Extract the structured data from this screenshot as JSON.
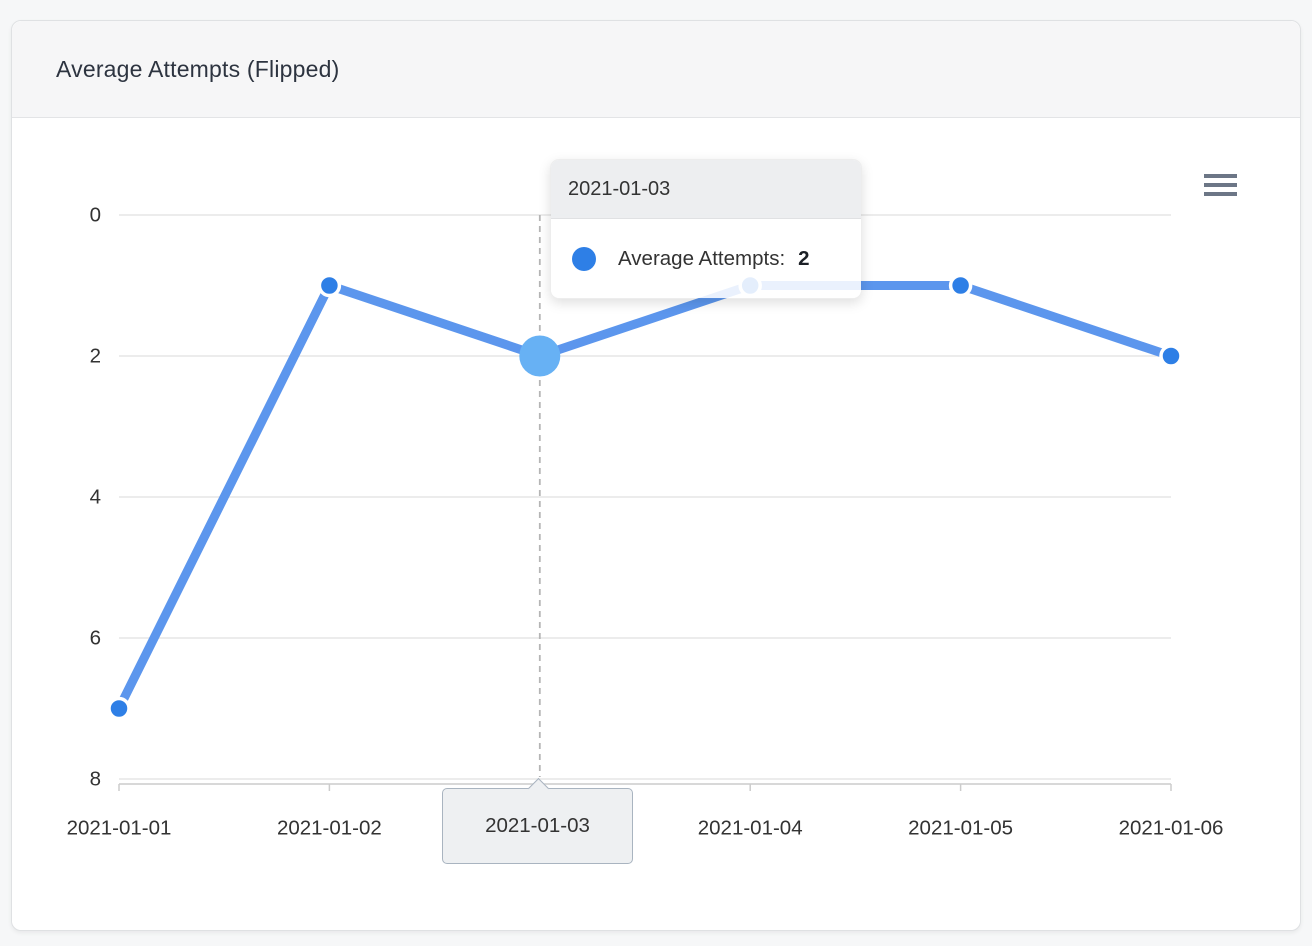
{
  "card": {
    "title": "Average Attempts (Flipped)"
  },
  "chart_data": {
    "type": "line",
    "title": "Average Attempts (Flipped)",
    "categories": [
      "2021-01-01",
      "2021-01-02",
      "2021-01-03",
      "2021-01-04",
      "2021-01-05",
      "2021-01-06"
    ],
    "series": [
      {
        "name": "Average Attempts",
        "values": [
          7,
          1,
          2,
          1,
          1,
          2
        ]
      }
    ],
    "xlabel": "",
    "ylabel": "",
    "y_ticks": [
      0,
      2,
      4,
      6,
      8
    ],
    "ylim": [
      0,
      8
    ],
    "y_axis_reversed": true,
    "grid": true,
    "legend_position": "none",
    "highlighted_index": 2,
    "colors": {
      "line": "#5c96ed",
      "marker": "#2e7fe6",
      "hover_marker": "#67b1f4",
      "gridline": "#e6e6e6",
      "axis_line": "#cccccc",
      "crosshair": "#b5b5b5",
      "axis_label": "#333333"
    }
  },
  "tooltip": {
    "header": "2021-01-03",
    "series_label": "Average Attempts:",
    "value": "2",
    "marker_color": "#2e7fe6"
  },
  "x_axis_callout": {
    "label": "2021-01-03"
  },
  "context_menu": {
    "icon": "hamburger-menu"
  }
}
